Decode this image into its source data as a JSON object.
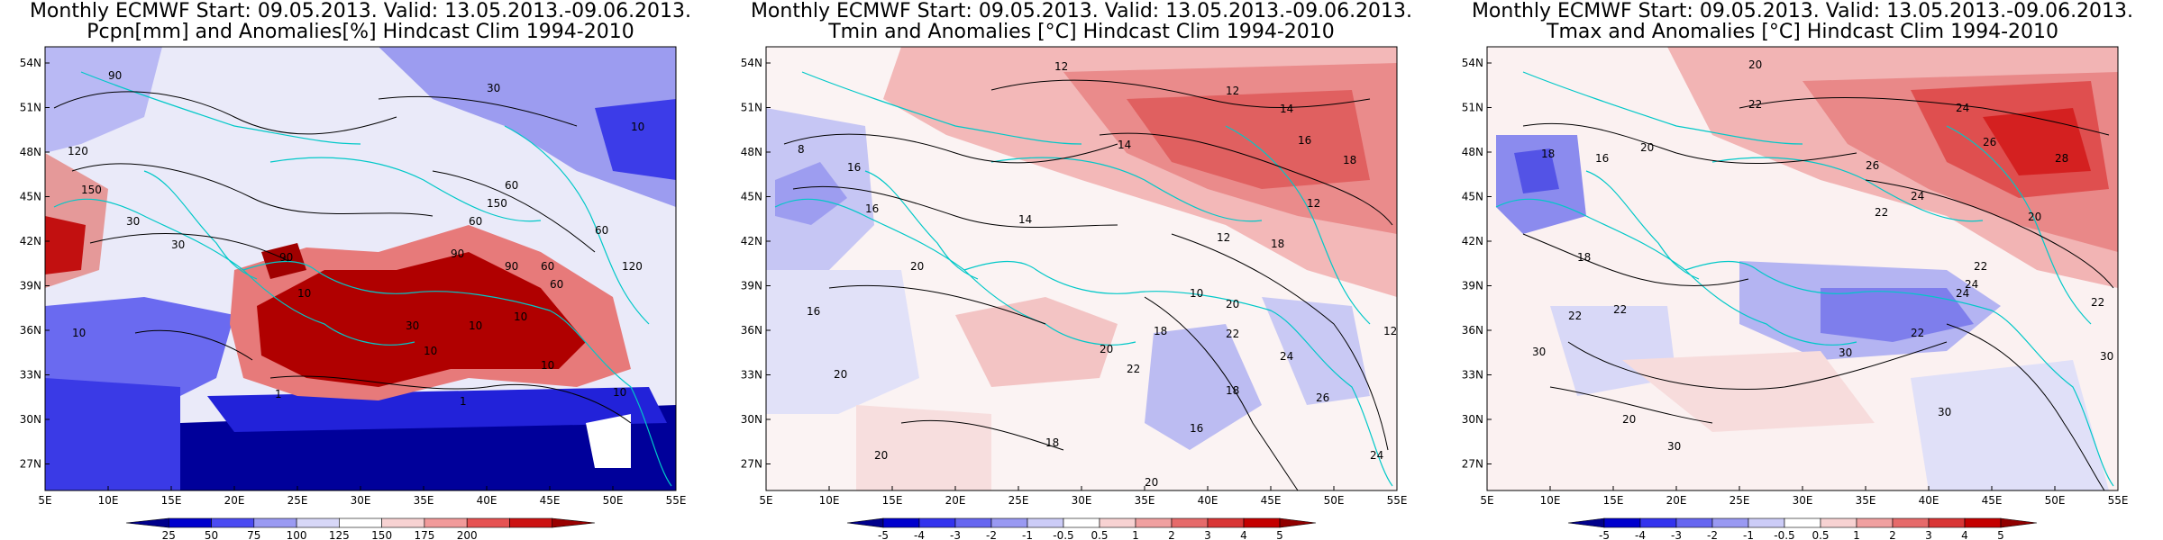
{
  "panels": [
    {
      "title_line1": "Monthly ECMWF Start: 09.05.2013. Valid: 13.05.2013.-09.06.2013.",
      "title_line2": "Pcpn[mm] and Anomalies[%] Hindcast Clim 1994-2010",
      "colorbar": {
        "labels": [
          "25",
          "50",
          "75",
          "100",
          "125",
          "150",
          "175",
          "200"
        ],
        "colors": [
          "#00008b",
          "#0000cd",
          "#4b4bf2",
          "#9a9af2",
          "#d7d7f7",
          "#ffffff",
          "#f7d2d2",
          "#f19a9a",
          "#e65252",
          "#cc1212",
          "#990000"
        ]
      },
      "contour_labels": [
        "90",
        "30",
        "10",
        "120",
        "150",
        "60",
        "30",
        "60",
        "150",
        "90",
        "10",
        "90",
        "30",
        "60",
        "90",
        "120",
        "60",
        "10",
        "30",
        "10",
        "10",
        "10",
        "10",
        "1",
        "1",
        "10",
        "60"
      ]
    },
    {
      "title_line1": "Monthly ECMWF Start: 09.05.2013. Valid: 13.05.2013.-09.06.2013.",
      "title_line2": "Tmin and Anomalies [°C] Hindcast Clim 1994-2010",
      "colorbar": {
        "labels": [
          "-5",
          "-4",
          "-3",
          "-2",
          "-1",
          "-0.5",
          "0.5",
          "1",
          "2",
          "3",
          "4",
          "5"
        ],
        "colors": [
          "#00008b",
          "#0000cd",
          "#3333ee",
          "#6666f0",
          "#9999f2",
          "#ccccf7",
          "#ffffff",
          "#f7d2d2",
          "#f0a0a0",
          "#e66a6a",
          "#d93535",
          "#c40000",
          "#900000"
        ]
      },
      "contour_labels": [
        "12",
        "14",
        "12",
        "8",
        "16",
        "14",
        "16",
        "18",
        "12",
        "14",
        "18",
        "16",
        "20",
        "12",
        "10",
        "20",
        "22",
        "24",
        "20",
        "18",
        "20",
        "22",
        "16",
        "18",
        "26",
        "24",
        "20",
        "12",
        "18",
        "20",
        "16"
      ]
    },
    {
      "title_line1": "Monthly ECMWF Start: 09.05.2013. Valid: 13.05.2013.-09.06.2013.",
      "title_line2": "Tmax and Anomalies [°C] Hindcast Clim 1994-2010",
      "colorbar": {
        "labels": [
          "-5",
          "-4",
          "-3",
          "-2",
          "-1",
          "-0.5",
          "0.5",
          "1",
          "2",
          "3",
          "4",
          "5"
        ],
        "colors": [
          "#00008b",
          "#0000cd",
          "#3333ee",
          "#6666f0",
          "#9999f2",
          "#ccccf7",
          "#ffffff",
          "#f7d2d2",
          "#f0a0a0",
          "#e66a6a",
          "#d93535",
          "#c40000",
          "#900000"
        ]
      },
      "contour_labels": [
        "20",
        "22",
        "24",
        "16",
        "20",
        "26",
        "28",
        "22",
        "24",
        "18",
        "18",
        "20",
        "22",
        "24",
        "22",
        "30",
        "22",
        "30",
        "22",
        "20",
        "30",
        "24",
        "30",
        "26",
        "22",
        "30"
      ]
    }
  ],
  "axes": {
    "lat_labels": [
      "54N",
      "51N",
      "48N",
      "45N",
      "42N",
      "39N",
      "36N",
      "33N",
      "30N",
      "27N"
    ],
    "lon_labels": [
      "5E",
      "10E",
      "15E",
      "20E",
      "25E",
      "30E",
      "35E",
      "40E",
      "45E",
      "50E",
      "55E"
    ]
  }
}
